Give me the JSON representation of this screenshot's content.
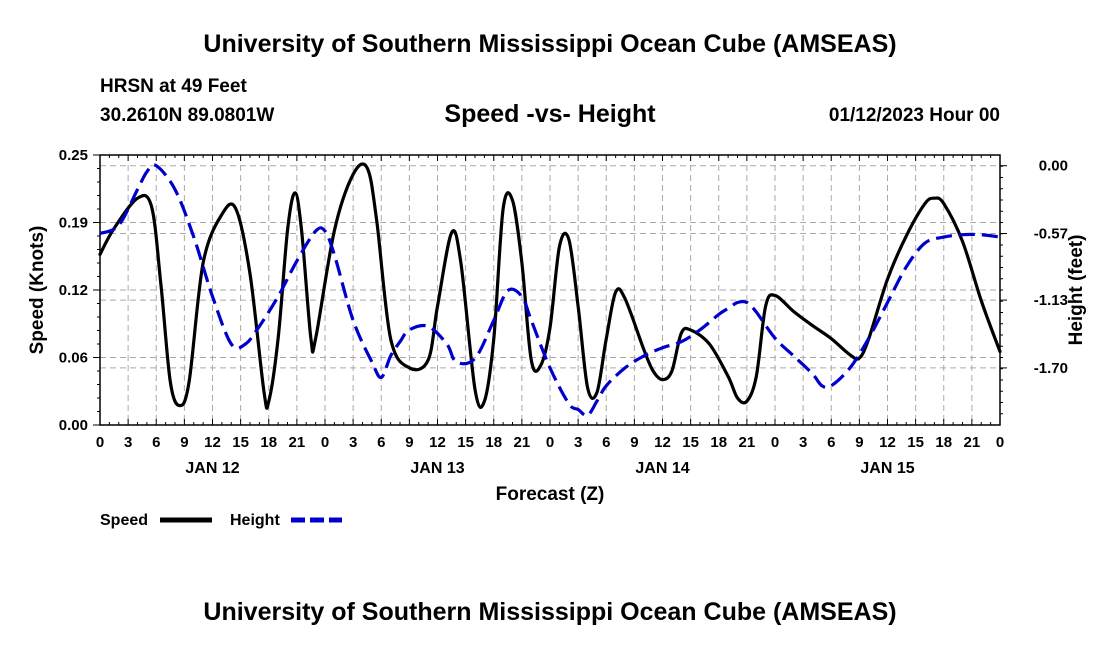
{
  "header": {
    "title": "University of Southern Mississippi Ocean Cube (AMSEAS)",
    "station": "HRSN at 49 Feet",
    "coordinates": "30.2610N  89.0801W",
    "subtitle": "Speed -vs- Height",
    "datetime": "01/12/2023 Hour 00"
  },
  "footer": {
    "title": "University of Southern Mississippi Ocean Cube (AMSEAS)"
  },
  "colors": {
    "speed": "#000000",
    "height": "#0000cc",
    "grid": "#aaaaaa"
  },
  "chart_data": {
    "type": "line",
    "xlabel": "Forecast (Z)",
    "ylabel_left": "Speed (Knots)",
    "ylabel_right": "Height (feet)",
    "x_range_hours": [
      0,
      96
    ],
    "y_left_range": [
      0.0,
      0.25
    ],
    "y_right_range": [
      -2.18,
      0.09
    ],
    "y_left_ticks": [
      "0.00",
      "0.06",
      "0.12",
      "0.19",
      "0.25"
    ],
    "y_left_tick_values": [
      0.0,
      0.0625,
      0.125,
      0.1875,
      0.25
    ],
    "y_right_ticks": [
      "0.00",
      "-0.57",
      "-1.13",
      "-1.70"
    ],
    "y_right_tick_values": [
      0.0,
      -0.57,
      -1.13,
      -1.7
    ],
    "x_ticks": [
      "0",
      "3",
      "6",
      "9",
      "12",
      "15",
      "18",
      "21",
      "0",
      "3",
      "6",
      "9",
      "12",
      "15",
      "18",
      "21",
      "0",
      "3",
      "6",
      "9",
      "12",
      "15",
      "18",
      "21",
      "0",
      "3",
      "6",
      "9",
      "12",
      "15",
      "18",
      "21",
      "0"
    ],
    "date_labels": [
      {
        "label": "JAN 12",
        "hour": 12
      },
      {
        "label": "JAN 13",
        "hour": 36
      },
      {
        "label": "JAN 14",
        "hour": 60
      },
      {
        "label": "JAN 15",
        "hour": 84
      }
    ],
    "legend": [
      {
        "name": "Speed",
        "style": "solid"
      },
      {
        "name": "Height",
        "style": "dashed"
      }
    ],
    "series": [
      {
        "name": "Speed",
        "axis": "left",
        "points": [
          [
            0,
            0.158
          ],
          [
            1.5,
            0.182
          ],
          [
            4,
            0.21
          ],
          [
            5.5,
            0.202
          ],
          [
            6.5,
            0.13
          ],
          [
            7.5,
            0.04
          ],
          [
            8.5,
            0.018
          ],
          [
            9.5,
            0.04
          ],
          [
            11,
            0.15
          ],
          [
            13,
            0.195
          ],
          [
            14.5,
            0.2
          ],
          [
            16,
            0.14
          ],
          [
            17.5,
            0.03
          ],
          [
            18,
            0.022
          ],
          [
            19,
            0.08
          ],
          [
            20,
            0.18
          ],
          [
            20.8,
            0.215
          ],
          [
            21.5,
            0.18
          ],
          [
            22.5,
            0.08
          ],
          [
            23,
            0.08
          ],
          [
            25,
            0.18
          ],
          [
            27,
            0.232
          ],
          [
            28.5,
            0.238
          ],
          [
            29.5,
            0.19
          ],
          [
            31,
            0.08
          ],
          [
            33,
            0.053
          ],
          [
            35,
            0.06
          ],
          [
            36,
            0.11
          ],
          [
            37.5,
            0.178
          ],
          [
            38.5,
            0.15
          ],
          [
            40,
            0.033
          ],
          [
            41,
            0.022
          ],
          [
            42,
            0.08
          ],
          [
            43,
            0.2
          ],
          [
            44,
            0.208
          ],
          [
            45,
            0.15
          ],
          [
            46,
            0.06
          ],
          [
            47,
            0.055
          ],
          [
            48,
            0.09
          ],
          [
            49,
            0.165
          ],
          [
            50,
            0.172
          ],
          [
            51,
            0.11
          ],
          [
            52,
            0.035
          ],
          [
            53,
            0.03
          ],
          [
            54,
            0.08
          ],
          [
            55,
            0.123
          ],
          [
            56,
            0.117
          ],
          [
            58,
            0.07
          ],
          [
            59,
            0.05
          ],
          [
            60,
            0.042
          ],
          [
            61,
            0.05
          ],
          [
            62,
            0.085
          ],
          [
            63,
            0.088
          ],
          [
            65,
            0.075
          ],
          [
            67,
            0.045
          ],
          [
            68,
            0.025
          ],
          [
            69,
            0.022
          ],
          [
            70,
            0.045
          ],
          [
            71,
            0.11
          ],
          [
            72,
            0.12
          ],
          [
            74,
            0.105
          ],
          [
            76,
            0.092
          ],
          [
            78,
            0.08
          ],
          [
            80,
            0.065
          ],
          [
            81,
            0.062
          ],
          [
            82,
            0.08
          ],
          [
            84,
            0.135
          ],
          [
            86,
            0.175
          ],
          [
            88,
            0.205
          ],
          [
            89,
            0.21
          ],
          [
            90,
            0.205
          ],
          [
            92,
            0.17
          ],
          [
            94,
            0.115
          ],
          [
            96,
            0.068
          ]
        ]
      },
      {
        "name": "Height",
        "axis": "right",
        "points": [
          [
            0,
            -0.57
          ],
          [
            2,
            -0.5
          ],
          [
            4,
            -0.2
          ],
          [
            5,
            -0.05
          ],
          [
            6,
            0.0
          ],
          [
            8,
            -0.2
          ],
          [
            10,
            -0.6
          ],
          [
            12,
            -1.1
          ],
          [
            14,
            -1.5
          ],
          [
            15.5,
            -1.5
          ],
          [
            17,
            -1.35
          ],
          [
            19,
            -1.1
          ],
          [
            21,
            -0.8
          ],
          [
            23,
            -0.55
          ],
          [
            24,
            -0.55
          ],
          [
            25,
            -0.75
          ],
          [
            27,
            -1.3
          ],
          [
            29,
            -1.65
          ],
          [
            30,
            -1.78
          ],
          [
            31,
            -1.6
          ],
          [
            32,
            -1.48
          ],
          [
            33,
            -1.38
          ],
          [
            35,
            -1.35
          ],
          [
            37,
            -1.5
          ],
          [
            38,
            -1.65
          ],
          [
            40,
            -1.62
          ],
          [
            42,
            -1.3
          ],
          [
            43.5,
            -1.05
          ],
          [
            45,
            -1.1
          ],
          [
            46,
            -1.3
          ],
          [
            48,
            -1.7
          ],
          [
            50,
            -2.0
          ],
          [
            51,
            -2.05
          ],
          [
            52,
            -2.1
          ],
          [
            53,
            -1.98
          ],
          [
            54,
            -1.85
          ],
          [
            56,
            -1.7
          ],
          [
            58,
            -1.6
          ],
          [
            60,
            -1.53
          ],
          [
            62,
            -1.48
          ],
          [
            64,
            -1.38
          ],
          [
            66,
            -1.25
          ],
          [
            67,
            -1.2
          ],
          [
            68,
            -1.15
          ],
          [
            69,
            -1.15
          ],
          [
            70,
            -1.23
          ],
          [
            72,
            -1.45
          ],
          [
            74,
            -1.6
          ],
          [
            76,
            -1.75
          ],
          [
            77,
            -1.85
          ],
          [
            78,
            -1.85
          ],
          [
            80,
            -1.7
          ],
          [
            82,
            -1.45
          ],
          [
            84,
            -1.15
          ],
          [
            86,
            -0.85
          ],
          [
            88,
            -0.65
          ],
          [
            90,
            -0.6
          ],
          [
            92,
            -0.58
          ],
          [
            94,
            -0.58
          ],
          [
            96,
            -0.6
          ]
        ]
      }
    ]
  }
}
